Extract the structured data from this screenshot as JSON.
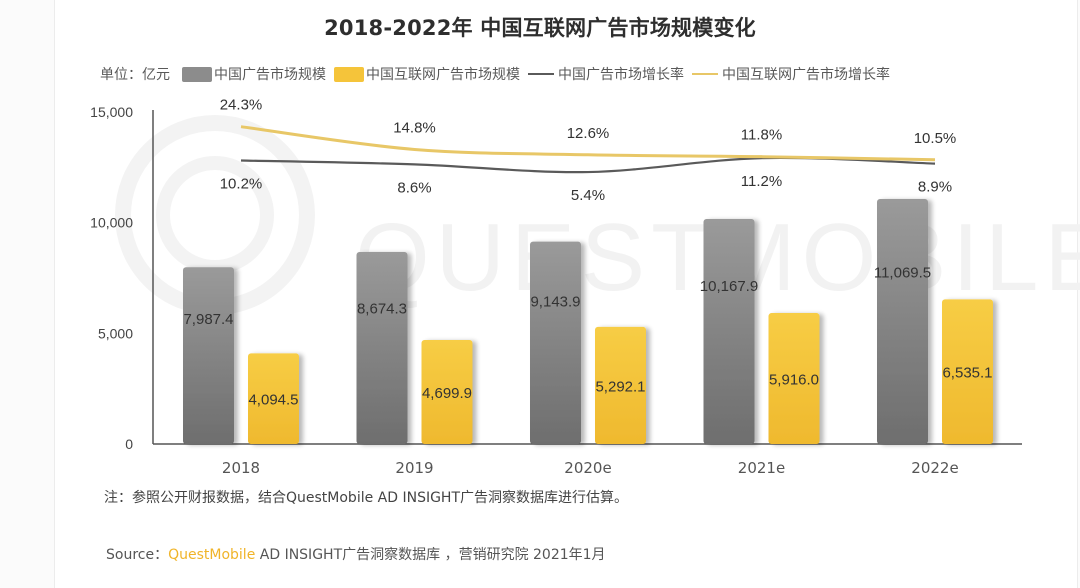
{
  "chart_data": {
    "type": "bar",
    "title": "2018-2022年 中国互联网广告市场规模变化",
    "unit_label": "单位：亿元",
    "categories": [
      "2018",
      "2019",
      "2020e",
      "2021e",
      "2022e"
    ],
    "ylim": [
      0,
      15000
    ],
    "yticks": [
      0,
      5000,
      10000,
      15000
    ],
    "ytick_labels": [
      "0",
      "5,000",
      "10,000",
      "15,000"
    ],
    "legend_position": "top",
    "grid": false,
    "series": [
      {
        "name": "中国广告市场规模",
        "kind": "bar",
        "color": "#8c8c8c",
        "values": [
          7987.4,
          8674.3,
          9143.9,
          10167.9,
          11069.5
        ],
        "labels": [
          "7,987.4",
          "8,674.3",
          "9,143.9",
          "10,167.9",
          "11,069.5"
        ]
      },
      {
        "name": "中国互联网广告市场规模",
        "kind": "bar",
        "color": "#f5c43a",
        "values": [
          4094.5,
          4699.9,
          5292.1,
          5916.0,
          6535.1
        ],
        "labels": [
          "4,094.5",
          "4,699.9",
          "5,292.1",
          "5,916.0",
          "6,535.1"
        ]
      },
      {
        "name": "中国广告市场增长率",
        "kind": "line",
        "color": "#5a5a5a",
        "values": [
          10.2,
          8.6,
          5.4,
          11.2,
          8.9
        ],
        "labels": [
          "10.2%",
          "8.6%",
          "5.4%",
          "11.2%",
          "8.9%"
        ]
      },
      {
        "name": "中国互联网广告市场增长率",
        "kind": "line",
        "color": "#e8c767",
        "values": [
          24.3,
          14.8,
          12.6,
          11.8,
          10.5
        ],
        "labels": [
          "24.3%",
          "14.8%",
          "12.6%",
          "11.8%",
          "10.5%"
        ]
      }
    ],
    "watermark": "QUESTMOBILE",
    "note": "注：参照公开财报数据，结合QuestMobile AD INSIGHT广告洞察数据库进行估算。",
    "source_prefix": "Source：",
    "source_brand": "QuestMobile",
    "source_rest": " AD INSIGHT广告洞察数据库 ，营销研究院 2021年1月"
  }
}
